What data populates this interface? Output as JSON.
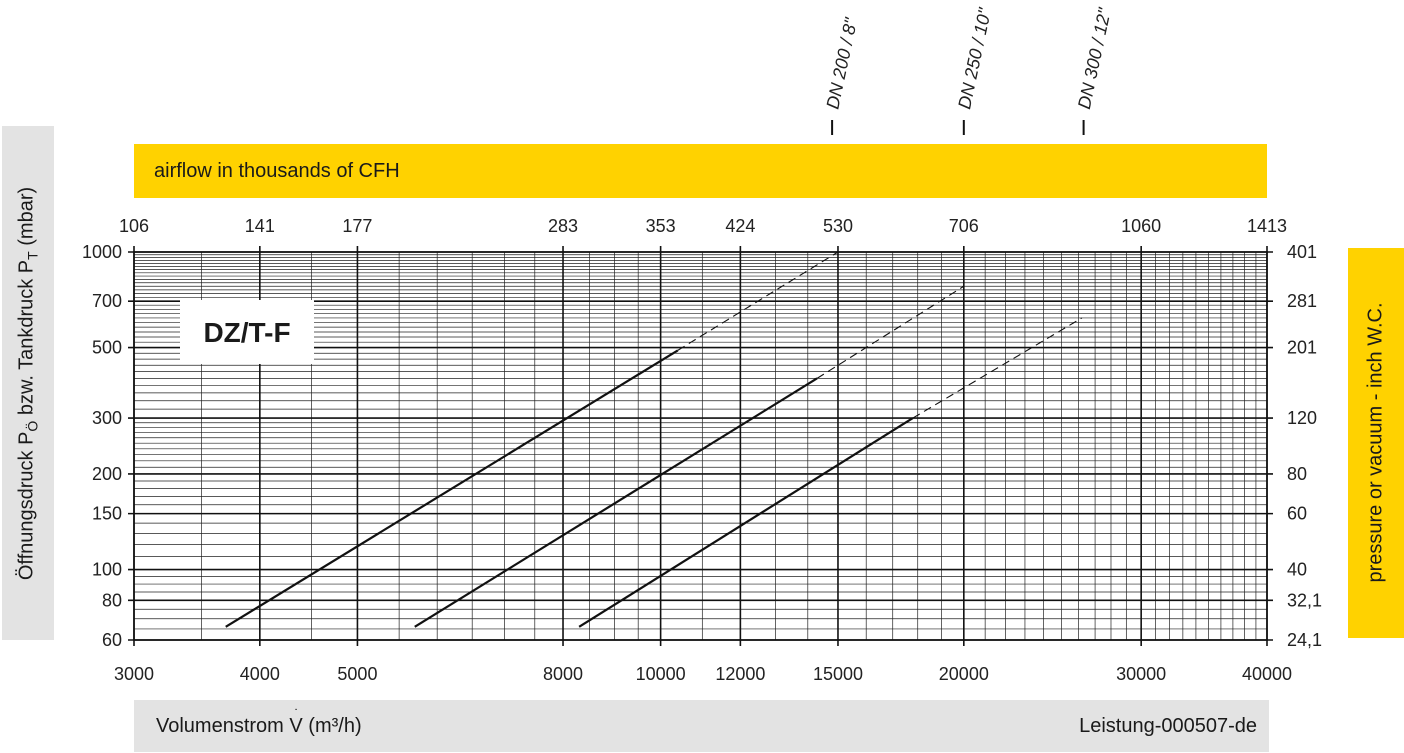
{
  "chart_data": {
    "type": "line",
    "title": "DZ/T-F",
    "xlabel": "Volumenstrom V̇ (m³/h)",
    "xlabel_prefix": "Volumenstrom ",
    "xlabel_v": "V",
    "xlabel_suffix": " (m³/h)",
    "x2label": "airflow in thousands of CFH",
    "ylabel": "Öffnungsdruck PÖ bzw. Tankdruck PT (mbar)",
    "ylabel_a": "Öffnungsdruck P",
    "ylabel_sub1": "Ö",
    "ylabel_b": " bzw. Tankdruck P",
    "ylabel_sub2": "T",
    "ylabel_c": " (mbar)",
    "y2label": "pressure or vacuum - inch W.C.",
    "footer": "Leistung-000507-de",
    "x_scale": "log",
    "y_scale": "log",
    "xlim": [
      3000,
      40000
    ],
    "ylim": [
      60,
      1000
    ],
    "x_ticks": [
      {
        "value": 3000,
        "label": "3000"
      },
      {
        "value": 4000,
        "label": "4000"
      },
      {
        "value": 5000,
        "label": "5000"
      },
      {
        "value": 8000,
        "label": "8000"
      },
      {
        "value": 10000,
        "label": "10000"
      },
      {
        "value": 12000,
        "label": "12000"
      },
      {
        "value": 15000,
        "label": "15000"
      },
      {
        "value": 20000,
        "label": "20000"
      },
      {
        "value": 30000,
        "label": "30000"
      },
      {
        "value": 40000,
        "label": "40000"
      }
    ],
    "x2_ticks": [
      {
        "value": 3000,
        "label": "106"
      },
      {
        "value": 4000,
        "label": "141"
      },
      {
        "value": 5000,
        "label": "177"
      },
      {
        "value": 8000,
        "label": "283"
      },
      {
        "value": 10000,
        "label": "353"
      },
      {
        "value": 12000,
        "label": "424"
      },
      {
        "value": 15000,
        "label": "530"
      },
      {
        "value": 20000,
        "label": "706"
      },
      {
        "value": 30000,
        "label": "1060"
      },
      {
        "value": 40000,
        "label": "1413"
      }
    ],
    "y_ticks": [
      {
        "value": 60,
        "label": "60"
      },
      {
        "value": 80,
        "label": "80"
      },
      {
        "value": 100,
        "label": "100"
      },
      {
        "value": 150,
        "label": "150"
      },
      {
        "value": 200,
        "label": "200"
      },
      {
        "value": 300,
        "label": "300"
      },
      {
        "value": 500,
        "label": "500"
      },
      {
        "value": 700,
        "label": "700"
      },
      {
        "value": 1000,
        "label": "1000"
      }
    ],
    "y2_ticks": [
      {
        "value": 60,
        "label": "24,1"
      },
      {
        "value": 80,
        "label": "32,1"
      },
      {
        "value": 100,
        "label": "40"
      },
      {
        "value": 150,
        "label": "60"
      },
      {
        "value": 200,
        "label": "80"
      },
      {
        "value": 300,
        "label": "120"
      },
      {
        "value": 500,
        "label": "201"
      },
      {
        "value": 700,
        "label": "281"
      },
      {
        "value": 1000,
        "label": "401"
      }
    ],
    "series": [
      {
        "name": "DN 200 / 8\"",
        "solid": [
          [
            3700,
            66
          ],
          [
            10400,
            490
          ]
        ],
        "dashed": [
          [
            10400,
            490
          ],
          [
            15000,
            1000
          ]
        ],
        "marker_x": 14800
      },
      {
        "name": "DN 250 / 10\"",
        "solid": [
          [
            5700,
            66
          ],
          [
            14300,
            400
          ]
        ],
        "dashed": [
          [
            14300,
            400
          ],
          [
            20000,
            780
          ]
        ],
        "marker_x": 20000
      },
      {
        "name": "DN 300 / 12\"",
        "solid": [
          [
            8300,
            66
          ],
          [
            17800,
            300
          ]
        ],
        "dashed": [
          [
            17800,
            300
          ],
          [
            26200,
            620
          ]
        ],
        "marker_x": 26300
      }
    ],
    "grid": true
  }
}
